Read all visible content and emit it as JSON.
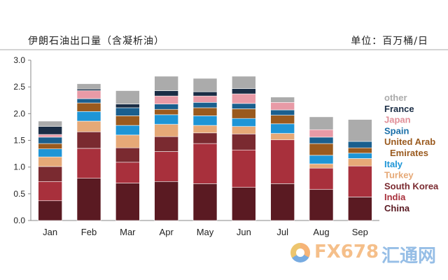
{
  "header": {
    "title": "伊朗石油出口量（含凝析油）",
    "unit": "单位：百万桶/日"
  },
  "watermark": {
    "brand": "FX678",
    "brand_cn": "汇通网"
  },
  "chart_data": {
    "type": "bar",
    "stacked": true,
    "title": "",
    "xlabel": "",
    "ylabel": "",
    "ylim": [
      0,
      3.0
    ],
    "yticks": [
      "0.0",
      "0.5",
      "1.0",
      "1.5",
      "2.0",
      "2.5",
      "3.0"
    ],
    "grid": false,
    "legend_position": "right",
    "categories": [
      "Jan",
      "Feb",
      "Mar",
      "Apr",
      "May",
      "Jun",
      "Jul",
      "Aug",
      "Sep"
    ],
    "series": [
      {
        "name": "China",
        "color": "#5a1a22",
        "values": [
          0.37,
          0.79,
          0.7,
          0.73,
          0.69,
          0.62,
          0.69,
          0.58,
          0.44
        ]
      },
      {
        "name": "India",
        "color": "#a8303c",
        "values": [
          0.36,
          0.56,
          0.39,
          0.56,
          0.75,
          0.7,
          0.82,
          0.4,
          0.58
        ]
      },
      {
        "name": "South Korea",
        "color": "#7a2a30",
        "values": [
          0.28,
          0.31,
          0.27,
          0.28,
          0.2,
          0.3,
          0.0,
          0.0,
          0.0
        ]
      },
      {
        "name": "Turkey",
        "color": "#e6a977",
        "values": [
          0.18,
          0.2,
          0.24,
          0.23,
          0.14,
          0.14,
          0.12,
          0.08,
          0.14
        ]
      },
      {
        "name": "Italy",
        "color": "#1e95d6",
        "values": [
          0.15,
          0.18,
          0.18,
          0.18,
          0.18,
          0.15,
          0.18,
          0.16,
          0.1
        ]
      },
      {
        "name": "United Arab Emirates",
        "color": "#9a5a1e",
        "values": [
          0.1,
          0.16,
          0.18,
          0.1,
          0.15,
          0.18,
          0.16,
          0.22,
          0.1
        ]
      },
      {
        "name": "Spain",
        "color": "#1a5f8e",
        "values": [
          0.12,
          0.08,
          0.15,
          0.1,
          0.1,
          0.1,
          0.1,
          0.12,
          0.12
        ]
      },
      {
        "name": "Japan",
        "color": "#e89aa6",
        "values": [
          0.05,
          0.15,
          0.0,
          0.15,
          0.12,
          0.18,
          0.14,
          0.14,
          0.0
        ]
      },
      {
        "name": "France",
        "color": "#1a2d45",
        "values": [
          0.15,
          0.03,
          0.07,
          0.1,
          0.08,
          0.1,
          0.0,
          0.0,
          0.0
        ]
      },
      {
        "name": "other",
        "color": "#ababab",
        "values": [
          0.1,
          0.1,
          0.25,
          0.27,
          0.25,
          0.23,
          0.1,
          0.24,
          0.41
        ]
      }
    ],
    "legend": [
      {
        "label": "other",
        "color": "#ababab"
      },
      {
        "label": "France",
        "color": "#1a2d45"
      },
      {
        "label": "Japan",
        "color": "#e08f98"
      },
      {
        "label": "Spain",
        "color": "#1a6fa8"
      },
      {
        "label": "United Arab",
        "color": "#9a5a1e"
      },
      {
        "label": "Emirates",
        "color": "#9a5a1e"
      },
      {
        "label": "Italy",
        "color": "#1e95d6"
      },
      {
        "label": "Turkey",
        "color": "#e6a977"
      },
      {
        "label": "South Korea",
        "color": "#7a2a30"
      },
      {
        "label": "India",
        "color": "#a8303c"
      },
      {
        "label": "China",
        "color": "#5a1a22"
      }
    ]
  }
}
